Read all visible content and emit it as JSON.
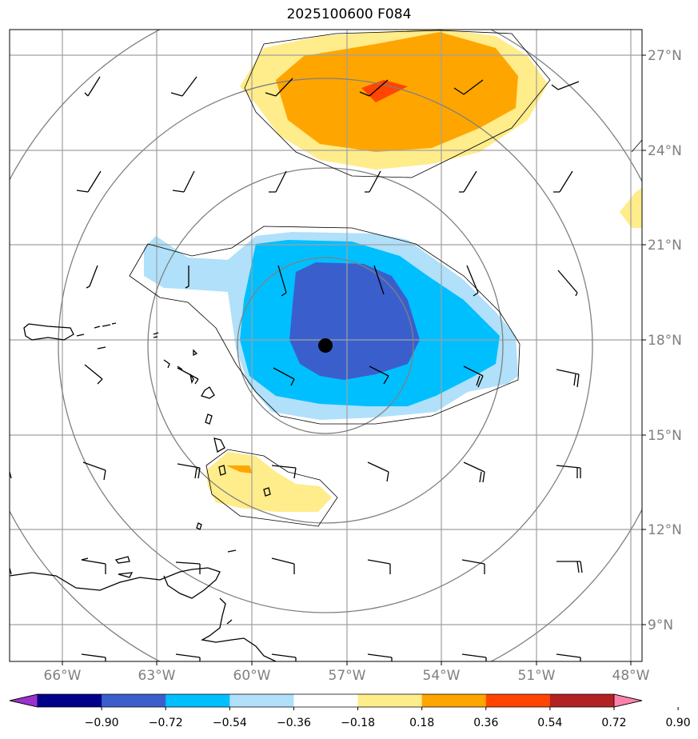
{
  "title": "2025100600 F084",
  "lon_labels": [
    "66°W",
    "63°W",
    "60°W",
    "57°W",
    "54°W",
    "51°W",
    "48°W"
  ],
  "lat_labels": [
    "27°N",
    "24°N",
    "21°N",
    "18°N",
    "15°N",
    "12°N",
    "9°N"
  ],
  "colorbar": {
    "ticks": [
      "−0.90",
      "−0.72",
      "−0.54",
      "−0.36",
      "−0.18",
      "0.18",
      "0.36",
      "0.54",
      "0.72",
      "0.90"
    ],
    "colors": [
      "#9a32cd",
      "#00008b",
      "#3a5fcd",
      "#00bfff",
      "#b0e0fa",
      "#ffffff",
      "#ffec8b",
      "#ffa500",
      "#ff4500",
      "#b22222",
      "#ff82ab"
    ]
  },
  "fill_colors": {
    "neg_light": "#b0e0fa",
    "neg_mid": "#00bfff",
    "neg_dark": "#3a5fcd",
    "pos_light": "#ffec8b",
    "pos_mid": "#ffa500",
    "pos_dark": "#ff4500"
  },
  "center_marker": "storm-center-dot"
}
